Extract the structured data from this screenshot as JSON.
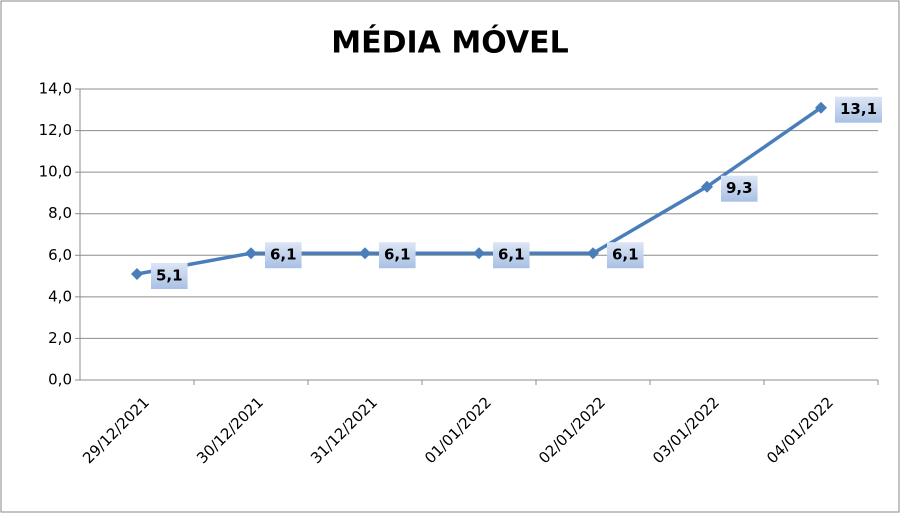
{
  "chart_data": {
    "type": "line",
    "title": "MÉDIA MÓVEL",
    "categories": [
      "29/12/2021",
      "30/12/2021",
      "31/12/2021",
      "01/01/2022",
      "02/01/2022",
      "03/01/2022",
      "04/01/2022"
    ],
    "values": [
      5.1,
      6.1,
      6.1,
      6.1,
      6.1,
      9.3,
      13.1
    ],
    "value_labels": [
      "5,1",
      "6,1",
      "6,1",
      "6,1",
      "6,1",
      "9,3",
      "13,1"
    ],
    "color": "#4a7ebb",
    "ylim": [
      0,
      14
    ],
    "yticks": [
      {
        "value": 0,
        "label": "0,0"
      },
      {
        "value": 2,
        "label": "2,0"
      },
      {
        "value": 4,
        "label": "4,0"
      },
      {
        "value": 6,
        "label": "6,0"
      },
      {
        "value": 8,
        "label": "8,0"
      },
      {
        "value": 10,
        "label": "10,0"
      },
      {
        "value": 12,
        "label": "12,0"
      },
      {
        "value": 14,
        "label": "14,0"
      }
    ],
    "grid": true
  }
}
